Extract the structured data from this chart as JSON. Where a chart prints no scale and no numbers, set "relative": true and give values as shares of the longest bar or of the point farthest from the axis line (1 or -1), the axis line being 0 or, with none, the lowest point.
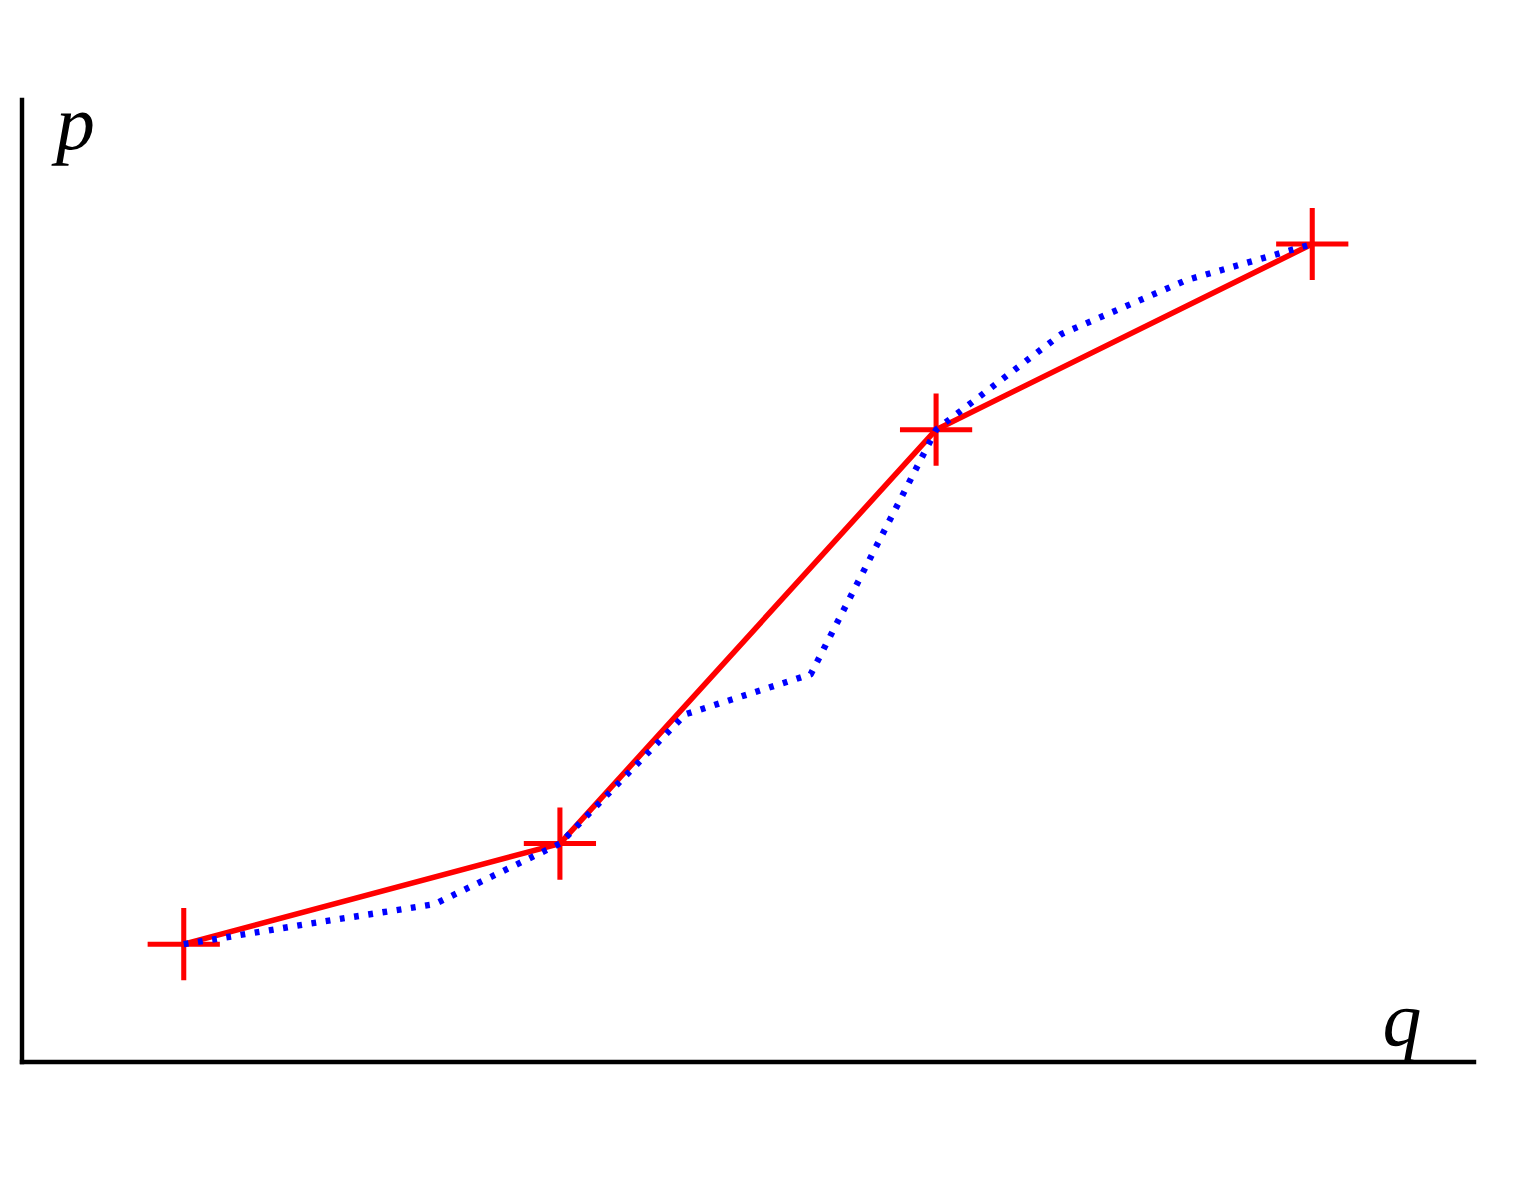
{
  "chart_data": {
    "type": "line",
    "xlabel": "q",
    "ylabel": "p",
    "relative": true,
    "categories": [
      null,
      null,
      null,
      null,
      null,
      null,
      null,
      null,
      null,
      null
    ],
    "series": [
      {
        "color": "#ff0000",
        "line_style": "solid",
        "marker": "cross",
        "values": [
          0.144,
          null,
          null,
          0.267,
          null,
          null,
          0.773,
          null,
          null,
          1
        ]
      },
      {
        "color": "#0000ff",
        "line_style": "dotted",
        "marker": "none",
        "values": [
          0.144,
          0.169,
          0.193,
          0.267,
          0.425,
          0.474,
          0.773,
          0.89,
          0.956,
          1
        ]
      }
    ]
  }
}
